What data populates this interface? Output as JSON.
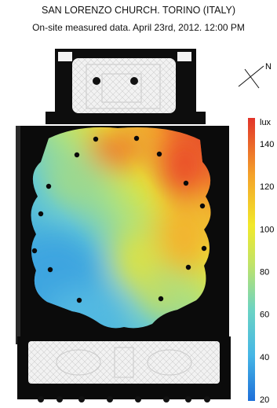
{
  "header": {
    "title": "SAN LORENZO CHURCH. TORINO (ITALY)",
    "subtitle": "On-site measured data. April 23rd, 2012. 12:00 PM"
  },
  "compass": {
    "label": "N"
  },
  "chart_data": {
    "type": "heatmap",
    "title": "SAN LORENZO CHURCH. TORINO (ITALY)",
    "subtitle": "On-site measured data. April 23rd, 2012. 12:00 PM",
    "colorbar": {
      "unit_label": "lux",
      "range": [
        20,
        150
      ],
      "ticks": [
        20,
        40,
        60,
        80,
        100,
        120,
        140
      ],
      "colormap": [
        "#1e6fd9",
        "#45b6e6",
        "#6bd3c4",
        "#bfe36a",
        "#f2e92a",
        "#f4a12a",
        "#e2342a"
      ]
    },
    "sensor_count": 14,
    "illuminance_pattern": "low (approx. 20-40 lux) in the south-west, rising to approx. 140-150 lux near the north-east corner"
  }
}
